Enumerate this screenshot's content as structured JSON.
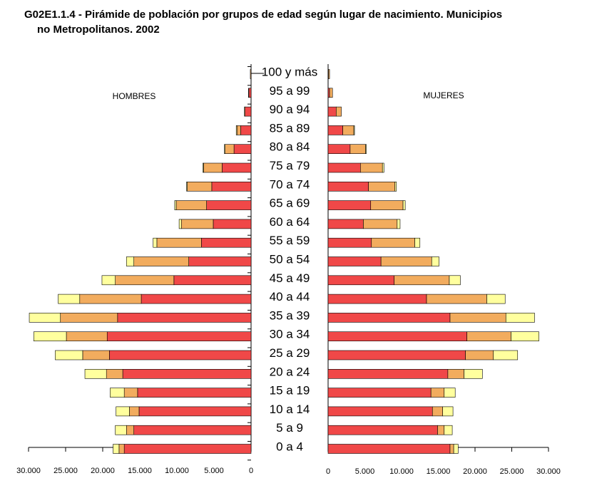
{
  "title": {
    "line1": "G02E1.1.4 - Pirámide de población por grupos de edad según lugar de nacimiento. Municipios",
    "line2": "no Metropolitanos.  2002"
  },
  "colors": {
    "segment_1": "#f04848",
    "segment_2": "#f2ac5e",
    "segment_3": "#ffff9e",
    "outline": "#000000"
  },
  "chart_data": {
    "type": "bar",
    "orientation": "horizontal-population-pyramid",
    "left_label": "HOMBRES",
    "right_label": "MUJERES",
    "age_groups": [
      "100 y más",
      "95 a 99",
      "90 a 94",
      "85 a 89",
      "80 a 84",
      "75 a 79",
      "70 a 74",
      "65 a 69",
      "60 a 64",
      "55 a 59",
      "50 a 54",
      "45 a 49",
      "40 a  44",
      "35 a 39",
      "30 a 34",
      "25 a 29",
      "20 a 24",
      "15 a 19",
      "10 a 14",
      "5 a 9",
      "0 a 4"
    ],
    "xlim": [
      0,
      30000
    ],
    "left_ticks": [
      "30.000",
      "25.000",
      "20.000",
      "15.000",
      "10.000",
      "5.000",
      "0"
    ],
    "right_ticks": [
      "0",
      "5.000",
      "10.000",
      "15.000",
      "20.000",
      "25.000",
      "30.000"
    ],
    "hombres": {
      "segments": [
        [
          0,
          100,
          0
        ],
        [
          300,
          50,
          0
        ],
        [
          800,
          100,
          0
        ],
        [
          1400,
          500,
          100
        ],
        [
          2300,
          1200,
          100
        ],
        [
          3900,
          2500,
          100
        ],
        [
          5300,
          3300,
          100
        ],
        [
          6000,
          4100,
          200
        ],
        [
          5100,
          4300,
          300
        ],
        [
          6700,
          6000,
          500
        ],
        [
          8400,
          7400,
          1000
        ],
        [
          10400,
          7900,
          1800
        ],
        [
          14800,
          8300,
          2900
        ],
        [
          18000,
          7700,
          4200
        ],
        [
          19400,
          5500,
          4400
        ],
        [
          19100,
          3600,
          3700
        ],
        [
          17300,
          2200,
          2900
        ],
        [
          15300,
          1800,
          1900
        ],
        [
          15100,
          1300,
          1800
        ],
        [
          15800,
          1000,
          1500
        ],
        [
          17100,
          700,
          800
        ]
      ]
    },
    "mujeres": {
      "segments": [
        [
          50,
          150,
          0
        ],
        [
          200,
          400,
          0
        ],
        [
          1100,
          700,
          0
        ],
        [
          2000,
          1500,
          100
        ],
        [
          3000,
          2100,
          100
        ],
        [
          4400,
          3000,
          200
        ],
        [
          5500,
          3600,
          200
        ],
        [
          5800,
          4400,
          300
        ],
        [
          4800,
          4600,
          400
        ],
        [
          5900,
          5900,
          700
        ],
        [
          7200,
          6900,
          1000
        ],
        [
          9000,
          7500,
          1500
        ],
        [
          13400,
          8200,
          2500
        ],
        [
          16600,
          7600,
          3900
        ],
        [
          18900,
          6000,
          3800
        ],
        [
          18700,
          3800,
          3300
        ],
        [
          16300,
          2200,
          2500
        ],
        [
          14000,
          1800,
          1500
        ],
        [
          14200,
          1400,
          1400
        ],
        [
          14900,
          900,
          1100
        ],
        [
          16600,
          500,
          600
        ]
      ]
    },
    "segment_colors": [
      "#f04848",
      "#f2ac5e",
      "#ffff9e"
    ],
    "grid": false
  }
}
